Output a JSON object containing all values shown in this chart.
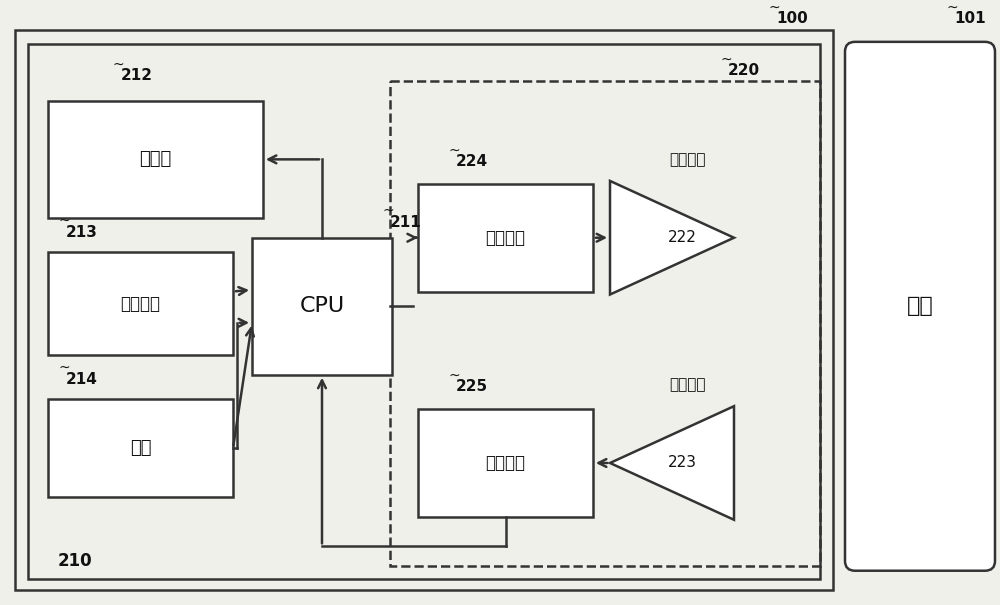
{
  "fig_width": 10.0,
  "fig_height": 6.05,
  "bg_color": "#f0f0eb",
  "box_color": "#ffffff",
  "box_edge_color": "#333333",
  "text_color": "#111111",
  "label_100": "100",
  "label_101": "101",
  "label_210": "210",
  "label_211": "211",
  "label_212": "212",
  "label_213": "213",
  "label_214": "214",
  "label_220": "220",
  "label_222": "222",
  "label_223": "223",
  "label_224": "224",
  "label_225": "225",
  "text_display": "显示器",
  "text_cpu": "CPU",
  "text_accel": "加速度计",
  "text_camera": "相机",
  "text_tx_block": "发送器块",
  "text_rx_block": "接收器块",
  "text_tx_ant": "发送天线",
  "text_rx_ant": "接收天线",
  "text_body": "身体",
  "font_size_label": 10,
  "font_size_box": 13,
  "font_size_body": 16,
  "font_size_ant": 11
}
